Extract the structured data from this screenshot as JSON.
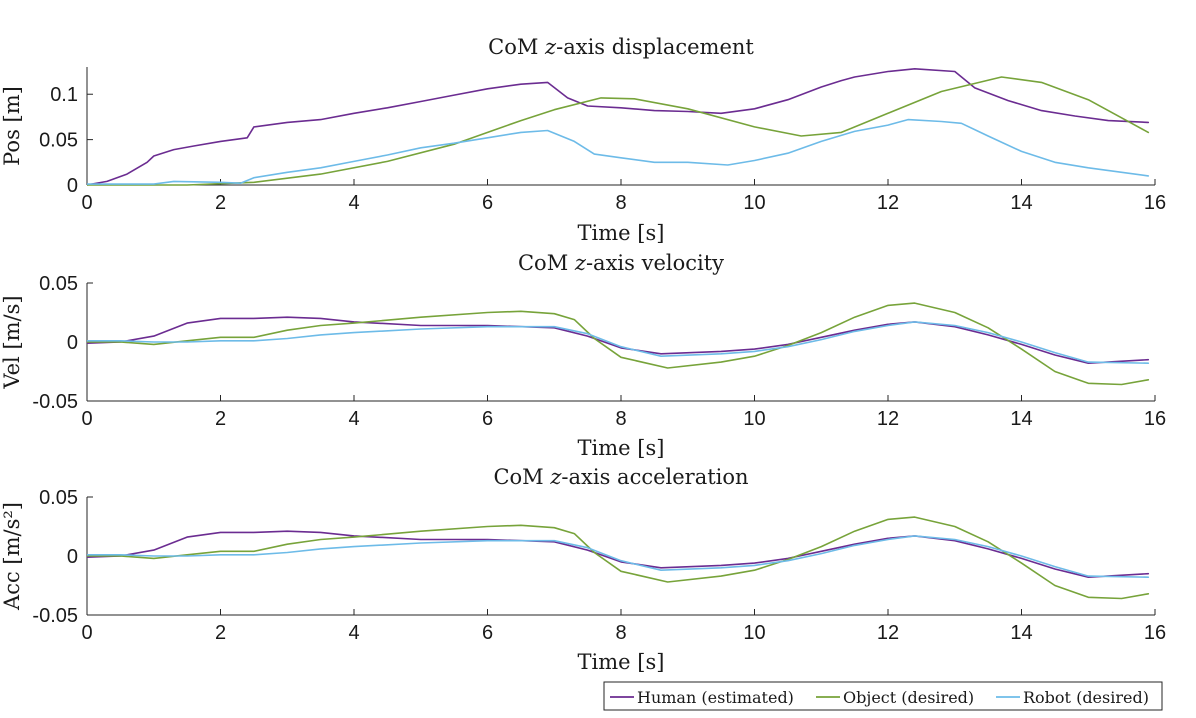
{
  "legend": {
    "entries": [
      {
        "label": "Human (estimated)",
        "color": "#6b2c91"
      },
      {
        "label": "Object (desired)",
        "color": "#77a33a"
      },
      {
        "label": "Robot (desired)",
        "color": "#6dbbe8"
      }
    ]
  },
  "chart_data": [
    {
      "type": "line",
      "title_prefix": "CoM ",
      "title_var": "z",
      "title_suffix": "-axis displacement",
      "xlabel": "Time [s]",
      "ylabel": "Pos [m]",
      "xlim": [
        0,
        16
      ],
      "ylim": [
        0,
        0.13
      ],
      "xticks": [
        "0",
        "2",
        "4",
        "6",
        "8",
        "10",
        "12",
        "14",
        "16"
      ],
      "yticks": [
        {
          "v": 0,
          "label": "0"
        },
        {
          "v": 0.05,
          "label": "0.05"
        },
        {
          "v": 0.1,
          "label": "0.1"
        }
      ],
      "series": [
        {
          "name": "Human (estimated)",
          "color": "#6b2c91",
          "x": [
            0,
            0.3,
            0.6,
            0.9,
            1.0,
            1.3,
            1.6,
            2.0,
            2.4,
            2.5,
            3.0,
            3.5,
            4.0,
            4.5,
            5.0,
            5.5,
            6.0,
            6.5,
            6.9,
            7.2,
            7.5,
            8.0,
            8.5,
            9.0,
            9.5,
            10.0,
            10.5,
            11.0,
            11.3,
            11.5,
            12.0,
            12.4,
            13.0,
            13.3,
            13.8,
            14.3,
            14.8,
            15.3,
            15.9
          ],
          "y": [
            0.0,
            0.004,
            0.012,
            0.025,
            0.032,
            0.039,
            0.043,
            0.048,
            0.052,
            0.064,
            0.069,
            0.072,
            0.079,
            0.085,
            0.092,
            0.099,
            0.106,
            0.111,
            0.113,
            0.096,
            0.087,
            0.085,
            0.082,
            0.081,
            0.079,
            0.084,
            0.094,
            0.108,
            0.115,
            0.119,
            0.125,
            0.128,
            0.125,
            0.107,
            0.093,
            0.082,
            0.076,
            0.071,
            0.069
          ]
        },
        {
          "name": "Object (desired)",
          "color": "#77a33a",
          "x": [
            0,
            1.5,
            2.5,
            3.5,
            4.5,
            5.5,
            6.5,
            7.0,
            7.7,
            8.2,
            9.0,
            10.0,
            10.7,
            11.3,
            12.0,
            12.8,
            13.7,
            14.3,
            15.0,
            15.9
          ],
          "y": [
            0.0,
            0.0,
            0.003,
            0.012,
            0.026,
            0.045,
            0.071,
            0.083,
            0.096,
            0.095,
            0.084,
            0.064,
            0.054,
            0.058,
            0.079,
            0.103,
            0.119,
            0.113,
            0.094,
            0.058
          ]
        },
        {
          "name": "Robot (desired)",
          "color": "#6dbbe8",
          "x": [
            0,
            1.0,
            1.3,
            2.0,
            2.3,
            2.5,
            3.0,
            3.5,
            4.0,
            4.5,
            5.0,
            5.5,
            6.0,
            6.5,
            6.9,
            7.3,
            7.6,
            8.0,
            8.5,
            9.0,
            9.6,
            10.0,
            10.5,
            11.0,
            11.5,
            12.0,
            12.3,
            12.8,
            13.1,
            13.5,
            14.0,
            14.5,
            15.0,
            15.9
          ],
          "y": [
            0.001,
            0.001,
            0.004,
            0.003,
            0.002,
            0.008,
            0.014,
            0.019,
            0.026,
            0.033,
            0.041,
            0.046,
            0.052,
            0.058,
            0.06,
            0.048,
            0.034,
            0.03,
            0.025,
            0.025,
            0.022,
            0.027,
            0.035,
            0.048,
            0.059,
            0.066,
            0.072,
            0.07,
            0.068,
            0.054,
            0.037,
            0.025,
            0.019,
            0.01
          ]
        }
      ]
    },
    {
      "type": "line",
      "title_prefix": "CoM ",
      "title_var": "z",
      "title_suffix": "-axis velocity",
      "xlabel": "Time [s]",
      "ylabel": "Vel [m/s]",
      "xlim": [
        0,
        16
      ],
      "ylim": [
        -0.05,
        0.05
      ],
      "xticks": [
        "0",
        "2",
        "4",
        "6",
        "8",
        "10",
        "12",
        "14",
        "16"
      ],
      "yticks": [
        {
          "v": -0.05,
          "label": "-0.05"
        },
        {
          "v": 0,
          "label": "0"
        },
        {
          "v": 0.05,
          "label": "0.05"
        }
      ],
      "series": [
        {
          "name": "Human (estimated)",
          "color": "#6b2c91",
          "x": [
            0,
            0.5,
            1.0,
            1.5,
            2.0,
            2.5,
            3.0,
            3.5,
            4.0,
            5.0,
            6.0,
            7.0,
            7.5,
            8.0,
            8.6,
            9.5,
            10.0,
            10.5,
            11.0,
            11.5,
            12.0,
            12.4,
            13.0,
            13.5,
            14.0,
            14.5,
            15.0,
            15.9
          ],
          "y": [
            -0.001,
            0.0,
            0.005,
            0.016,
            0.02,
            0.02,
            0.021,
            0.02,
            0.017,
            0.014,
            0.014,
            0.012,
            0.005,
            -0.005,
            -0.01,
            -0.008,
            -0.006,
            -0.002,
            0.004,
            0.01,
            0.015,
            0.017,
            0.013,
            0.006,
            -0.002,
            -0.011,
            -0.018,
            -0.015
          ]
        },
        {
          "name": "Object (desired)",
          "color": "#77a33a",
          "x": [
            0,
            0.5,
            1.0,
            1.5,
            2.0,
            2.5,
            3.0,
            3.5,
            4.0,
            5.0,
            6.0,
            6.5,
            7.0,
            7.3,
            7.6,
            8.0,
            8.7,
            9.5,
            10.0,
            10.5,
            11.0,
            11.5,
            12.0,
            12.4,
            13.0,
            13.5,
            14.0,
            14.5,
            15.0,
            15.5,
            15.9
          ],
          "y": [
            0.0,
            0.0,
            -0.002,
            0.001,
            0.004,
            0.004,
            0.01,
            0.014,
            0.016,
            0.021,
            0.025,
            0.026,
            0.024,
            0.019,
            0.003,
            -0.013,
            -0.022,
            -0.017,
            -0.012,
            -0.003,
            0.008,
            0.021,
            0.031,
            0.033,
            0.025,
            0.012,
            -0.006,
            -0.025,
            -0.035,
            -0.036,
            -0.032
          ]
        },
        {
          "name": "Robot (desired)",
          "color": "#6dbbe8",
          "x": [
            0,
            0.5,
            1.0,
            1.5,
            2.0,
            2.5,
            3.0,
            3.5,
            4.0,
            5.0,
            6.0,
            7.0,
            7.5,
            8.0,
            8.6,
            9.5,
            10.0,
            10.5,
            11.0,
            11.5,
            12.0,
            12.4,
            13.0,
            13.5,
            14.0,
            14.5,
            15.0,
            15.9
          ],
          "y": [
            0.001,
            0.001,
            0.0,
            0.0,
            0.001,
            0.001,
            0.003,
            0.006,
            0.008,
            0.011,
            0.013,
            0.013,
            0.007,
            -0.004,
            -0.012,
            -0.01,
            -0.008,
            -0.004,
            0.002,
            0.009,
            0.014,
            0.017,
            0.014,
            0.008,
            0.0,
            -0.009,
            -0.017,
            -0.018
          ]
        }
      ]
    },
    {
      "type": "line",
      "title_prefix": "CoM ",
      "title_var": "z",
      "title_suffix": "-axis acceleration",
      "xlabel": "Time [s]",
      "ylabel": "Acc [m/s²]",
      "xlim": [
        0,
        16
      ],
      "ylim": [
        -0.05,
        0.05
      ],
      "xticks": [
        "0",
        "2",
        "4",
        "6",
        "8",
        "10",
        "12",
        "14",
        "16"
      ],
      "yticks": [
        {
          "v": -0.05,
          "label": "-0.05"
        },
        {
          "v": 0,
          "label": "0"
        },
        {
          "v": 0.05,
          "label": "0.05"
        }
      ],
      "series": [
        {
          "name": "Human (estimated)",
          "color": "#6b2c91",
          "x": [
            0,
            0.5,
            1.0,
            1.5,
            2.0,
            2.5,
            3.0,
            3.5,
            4.0,
            5.0,
            6.0,
            7.0,
            7.5,
            8.0,
            8.6,
            9.5,
            10.0,
            10.5,
            11.0,
            11.5,
            12.0,
            12.4,
            13.0,
            13.5,
            14.0,
            14.5,
            15.0,
            15.9
          ],
          "y": [
            -0.001,
            0.0,
            0.005,
            0.016,
            0.02,
            0.02,
            0.021,
            0.02,
            0.017,
            0.014,
            0.014,
            0.012,
            0.005,
            -0.005,
            -0.01,
            -0.008,
            -0.006,
            -0.002,
            0.004,
            0.01,
            0.015,
            0.017,
            0.013,
            0.006,
            -0.002,
            -0.011,
            -0.018,
            -0.015
          ]
        },
        {
          "name": "Object (desired)",
          "color": "#77a33a",
          "x": [
            0,
            0.5,
            1.0,
            1.5,
            2.0,
            2.5,
            3.0,
            3.5,
            4.0,
            5.0,
            6.0,
            6.5,
            7.0,
            7.3,
            7.6,
            8.0,
            8.7,
            9.5,
            10.0,
            10.5,
            11.0,
            11.5,
            12.0,
            12.4,
            13.0,
            13.5,
            14.0,
            14.5,
            15.0,
            15.5,
            15.9
          ],
          "y": [
            0.0,
            0.0,
            -0.002,
            0.001,
            0.004,
            0.004,
            0.01,
            0.014,
            0.016,
            0.021,
            0.025,
            0.026,
            0.024,
            0.019,
            0.003,
            -0.013,
            -0.022,
            -0.017,
            -0.012,
            -0.003,
            0.008,
            0.021,
            0.031,
            0.033,
            0.025,
            0.012,
            -0.006,
            -0.025,
            -0.035,
            -0.036,
            -0.032
          ]
        },
        {
          "name": "Robot (desired)",
          "color": "#6dbbe8",
          "x": [
            0,
            0.5,
            1.0,
            1.5,
            2.0,
            2.5,
            3.0,
            3.5,
            4.0,
            5.0,
            6.0,
            7.0,
            7.5,
            8.0,
            8.6,
            9.5,
            10.0,
            10.5,
            11.0,
            11.5,
            12.0,
            12.4,
            13.0,
            13.5,
            14.0,
            14.5,
            15.0,
            15.9
          ],
          "y": [
            0.001,
            0.001,
            0.0,
            0.0,
            0.001,
            0.001,
            0.003,
            0.006,
            0.008,
            0.011,
            0.013,
            0.013,
            0.007,
            -0.004,
            -0.012,
            -0.01,
            -0.008,
            -0.004,
            0.002,
            0.009,
            0.014,
            0.017,
            0.014,
            0.008,
            0.0,
            -0.009,
            -0.017,
            -0.018
          ]
        }
      ]
    }
  ]
}
